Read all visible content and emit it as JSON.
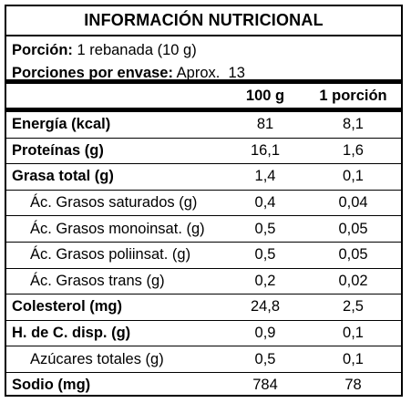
{
  "title": "INFORMACIÓN NUTRICIONAL",
  "serving": {
    "label": "Porción:",
    "value": "1 rebanada (10 g)"
  },
  "servings_per_package": {
    "label": "Porciones por envase:",
    "value": "Aprox.  13"
  },
  "columns": {
    "per100": "100 g",
    "perServing": "1 porción"
  },
  "rows": [
    {
      "name": "Energía (kcal)",
      "per100": "81",
      "perServing": "8,1"
    },
    {
      "name": "Proteínas (g)",
      "per100": "16,1",
      "perServing": "1,6"
    },
    {
      "name": "Grasa total (g)",
      "per100": "1,4",
      "perServing": "0,1"
    },
    {
      "name": "Ác. Grasos saturados (g)",
      "per100": "0,4",
      "perServing": "0,04"
    },
    {
      "name": "Ác. Grasos monoinsat. (g)",
      "per100": "0,5",
      "perServing": "0,05"
    },
    {
      "name": "Ác. Grasos poliinsat. (g)",
      "per100": "0,5",
      "perServing": "0,05"
    },
    {
      "name": "Ác. Grasos trans (g)",
      "per100": "0,2",
      "perServing": "0,02"
    },
    {
      "name": "Colesterol (mg)",
      "per100": "24,8",
      "perServing": "2,5"
    },
    {
      "name": "H. de C. disp. (g)",
      "per100": "0,9",
      "perServing": "0,1"
    },
    {
      "name": "Azúcares totales (g)",
      "per100": "0,5",
      "perServing": "0,1"
    },
    {
      "name": "Sodio (mg)",
      "per100": "784",
      "perServing": "78"
    }
  ]
}
